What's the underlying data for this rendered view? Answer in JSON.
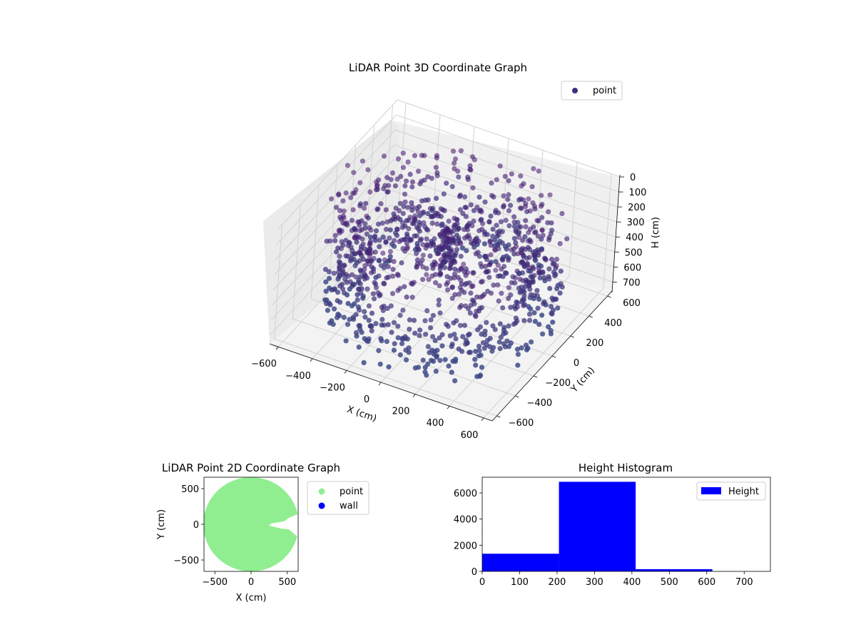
{
  "chart_data": [
    {
      "type": "scatter3d",
      "title": "LiDAR Point 3D Coordinate Graph",
      "xlabel": "X (cm)",
      "ylabel": "Y (cm)",
      "zlabel": "H (cm)",
      "xlim": [
        -650,
        650
      ],
      "ylim": [
        -650,
        650
      ],
      "zlim": [
        0,
        760
      ],
      "z_inverted": true,
      "xticks": [
        "−600",
        "−400",
        "−200",
        "0",
        "200",
        "400",
        "600"
      ],
      "yticks": [
        "−600",
        "−400",
        "−200",
        "0",
        "200",
        "400",
        "600"
      ],
      "zticks": [
        "0",
        "100",
        "200",
        "300",
        "400",
        "500",
        "600",
        "700"
      ],
      "legend": {
        "entries": [
          "point"
        ],
        "placement": "top-right"
      },
      "grid": true,
      "series": [
        {
          "name": "point",
          "color": "#3b2f7f",
          "shape": "ring of points around scanner",
          "radius_range": [
            400,
            620
          ],
          "height_range": [
            0,
            720
          ],
          "inner_opening_deg": [
            -30,
            30
          ]
        }
      ]
    },
    {
      "type": "scatter",
      "title": "LiDAR Point 2D Coordinate Graph",
      "xlabel": "X (cm)",
      "ylabel": "Y (cm)",
      "xlim": [
        -650,
        650
      ],
      "ylim": [
        -660,
        660
      ],
      "xticks": [
        "−500",
        "0",
        "500"
      ],
      "yticks": [
        "−500",
        "0",
        "500"
      ],
      "legend": {
        "entries": [
          "point",
          "wall"
        ],
        "placement": "outside-right"
      },
      "series": [
        {
          "name": "point",
          "color": "#90ee90",
          "shape": "filled disc radius ~650 with notch near +x axis"
        },
        {
          "name": "wall",
          "color": "#0000ff"
        }
      ]
    },
    {
      "type": "bar",
      "title": "Height Histogram",
      "xlabel": "",
      "ylabel": "",
      "bins": [
        [
          0,
          205
        ],
        [
          205,
          410
        ],
        [
          410,
          615
        ],
        [
          615,
          820
        ]
      ],
      "values": [
        1350,
        6850,
        170,
        0
      ],
      "xlim": [
        0,
        770
      ],
      "ylim": [
        0,
        7200
      ],
      "xticks": [
        "0",
        "100",
        "200",
        "300",
        "400",
        "500",
        "600",
        "700"
      ],
      "yticks": [
        "0",
        "2000",
        "4000",
        "6000"
      ],
      "legend": {
        "entries": [
          "Height"
        ],
        "placement": "top-right"
      },
      "series": [
        {
          "name": "Height",
          "color": "#0000ff"
        }
      ]
    }
  ]
}
